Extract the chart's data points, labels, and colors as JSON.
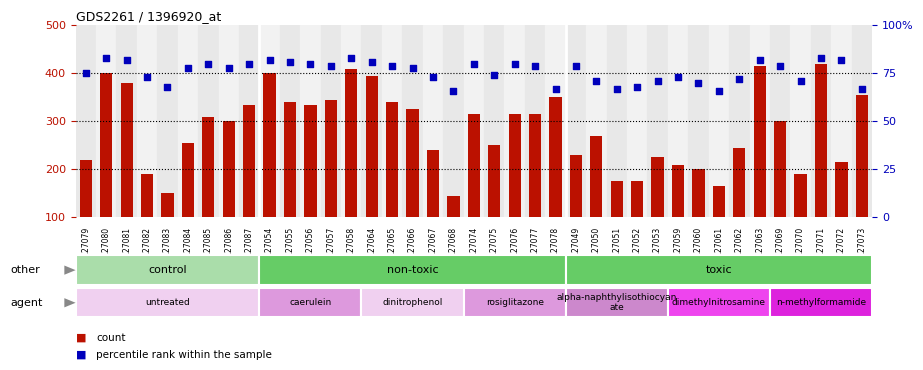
{
  "title": "GDS2261 / 1396920_at",
  "samples": [
    "GSM127079",
    "GSM127080",
    "GSM127081",
    "GSM127082",
    "GSM127083",
    "GSM127084",
    "GSM127085",
    "GSM127086",
    "GSM127087",
    "GSM127054",
    "GSM127055",
    "GSM127056",
    "GSM127057",
    "GSM127058",
    "GSM127064",
    "GSM127065",
    "GSM127066",
    "GSM127067",
    "GSM127068",
    "GSM127074",
    "GSM127075",
    "GSM127076",
    "GSM127077",
    "GSM127078",
    "GSM127049",
    "GSM127050",
    "GSM127051",
    "GSM127052",
    "GSM127053",
    "GSM127059",
    "GSM127060",
    "GSM127061",
    "GSM127062",
    "GSM127063",
    "GSM127069",
    "GSM127070",
    "GSM127071",
    "GSM127072",
    "GSM127073"
  ],
  "bar_values": [
    220,
    400,
    380,
    190,
    150,
    255,
    310,
    300,
    335,
    400,
    340,
    335,
    345,
    410,
    395,
    340,
    325,
    240,
    145,
    315,
    250,
    315,
    315,
    350,
    230,
    270,
    175,
    175,
    225,
    210,
    200,
    165,
    245,
    415,
    300,
    190,
    420,
    215,
    355
  ],
  "dot_values": [
    75,
    83,
    82,
    73,
    68,
    78,
    80,
    78,
    80,
    82,
    81,
    80,
    79,
    83,
    81,
    79,
    78,
    73,
    66,
    80,
    74,
    80,
    79,
    67,
    79,
    71,
    67,
    68,
    71,
    73,
    70,
    66,
    72,
    82,
    79,
    71,
    83,
    82,
    67
  ],
  "ylim_left": [
    100,
    500
  ],
  "ylim_right": [
    0,
    100
  ],
  "yticks_left": [
    100,
    200,
    300,
    400,
    500
  ],
  "yticks_right": [
    0,
    25,
    50,
    75,
    100
  ],
  "bar_color": "#bb1100",
  "dot_color": "#0000bb",
  "plot_bg_even": "#e8e8e8",
  "plot_bg_odd": "#f2f2f2",
  "group_sep_color": "#888888",
  "other_groups": [
    {
      "label": "control",
      "start": 0,
      "end": 9,
      "color": "#aaddaa"
    },
    {
      "label": "non-toxic",
      "start": 9,
      "end": 24,
      "color": "#66cc66"
    },
    {
      "label": "toxic",
      "start": 24,
      "end": 39,
      "color": "#66cc66"
    }
  ],
  "agent_groups": [
    {
      "label": "untreated",
      "start": 0,
      "end": 9,
      "color": "#f0d0f0"
    },
    {
      "label": "caerulein",
      "start": 9,
      "end": 14,
      "color": "#dd99dd"
    },
    {
      "label": "dinitrophenol",
      "start": 14,
      "end": 19,
      "color": "#f0d0f0"
    },
    {
      "label": "rosiglitazone",
      "start": 19,
      "end": 24,
      "color": "#dd99dd"
    },
    {
      "label": "alpha-naphthylisothiocyan\nate",
      "start": 24,
      "end": 29,
      "color": "#cc88cc"
    },
    {
      "label": "dimethylnitrosamine",
      "start": 29,
      "end": 34,
      "color": "#ee44ee"
    },
    {
      "label": "n-methylformamide",
      "start": 34,
      "end": 39,
      "color": "#dd22dd"
    }
  ],
  "legend_items": [
    {
      "label": "count",
      "color": "#bb1100"
    },
    {
      "label": "percentile rank within the sample",
      "color": "#0000bb"
    }
  ]
}
